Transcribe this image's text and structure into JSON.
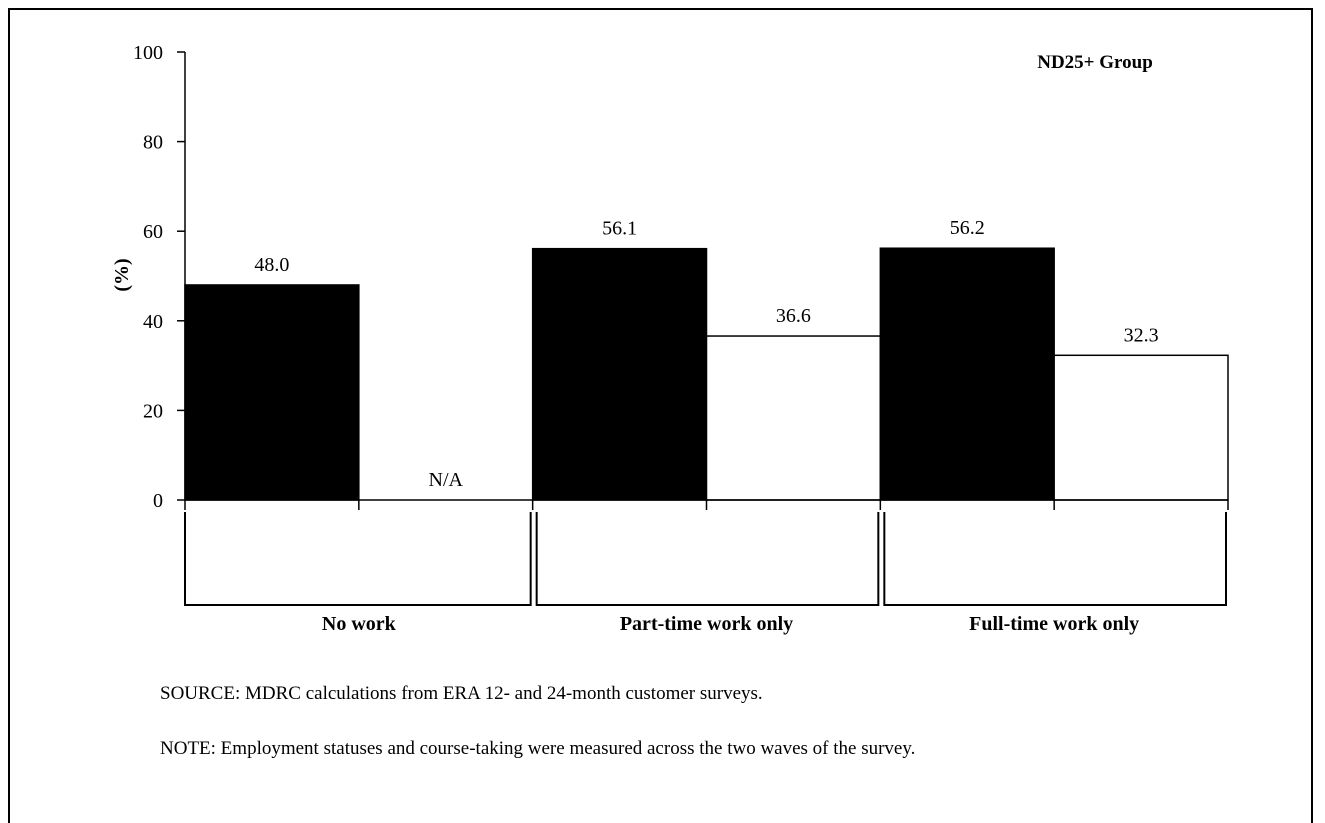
{
  "chart_data": {
    "type": "bar",
    "title": "ND25+ Group",
    "ylabel": "(%)",
    "xlabel": "",
    "ylim": [
      0,
      100
    ],
    "yticks": [
      "0",
      "20",
      "40",
      "60",
      "80",
      "100"
    ],
    "categories": [
      "No work",
      "Part-time work only",
      "Full-time work only"
    ],
    "series": [
      {
        "values": [
          48.0,
          56.1,
          56.2
        ],
        "labels": [
          "48.0",
          "56.1",
          "56.2"
        ],
        "color": "#000000"
      },
      {
        "values": [
          null,
          36.6,
          32.3
        ],
        "labels": [
          "N/A",
          "36.6",
          "32.3"
        ],
        "color": "#ffffff"
      }
    ],
    "grid": false,
    "legend": "none"
  },
  "notes": {
    "source": "SOURCE: MDRC calculations from ERA 12- and 24-month customer surveys.",
    "note": "NOTE: Employment statuses  and course-taking were measured across the two waves of the survey."
  }
}
